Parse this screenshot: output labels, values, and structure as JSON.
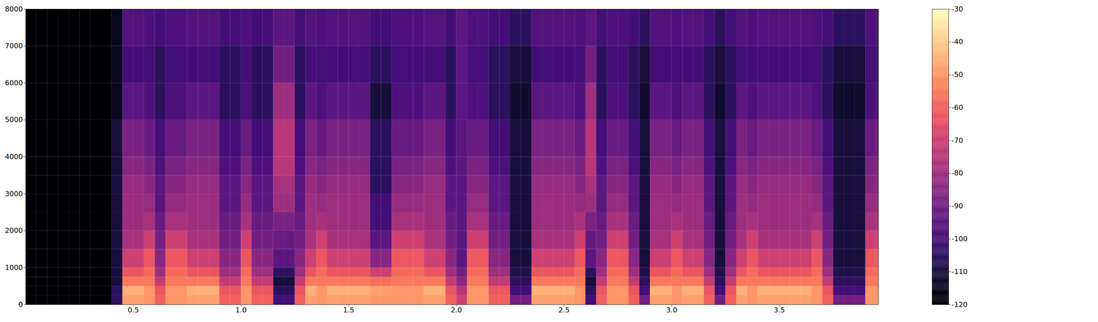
{
  "chart_data": {
    "type": "heatmap",
    "color": "magma",
    "x_edges": [
      0,
      0.05,
      0.1,
      0.15,
      0.2,
      0.25,
      0.3,
      0.35,
      0.4,
      0.45,
      0.5,
      0.55,
      0.6,
      0.65,
      0.7,
      0.75,
      0.8,
      0.85,
      0.9,
      0.95,
      1,
      1.05,
      1.1,
      1.15,
      1.2,
      1.25,
      1.3,
      1.35,
      1.4,
      1.45,
      1.5,
      1.55,
      1.6,
      1.65,
      1.7,
      1.75,
      1.8,
      1.85,
      1.9,
      1.95,
      2,
      2.05,
      2.1,
      2.15,
      2.2,
      2.25,
      2.3,
      2.35,
      2.4,
      2.45,
      2.5,
      2.55,
      2.6,
      2.65,
      2.7,
      2.75,
      2.8,
      2.85,
      2.9,
      2.95,
      3,
      3.05,
      3.1,
      3.15,
      3.2,
      3.25,
      3.3,
      3.35,
      3.4,
      3.45,
      3.5,
      3.55,
      3.6,
      3.65,
      3.7,
      3.75,
      3.8,
      3.85,
      3.9,
      3.95,
      4
    ],
    "y_edges": [
      0,
      250,
      500,
      750,
      1000,
      1500,
      2000,
      2500,
      3000,
      3500,
      4000,
      5000,
      6000,
      7000,
      8000
    ],
    "values": [
      [
        -120,
        -120,
        -120,
        -120,
        -120,
        -120,
        -120,
        -120,
        -120,
        -120,
        -120,
        -120,
        -120,
        -120
      ],
      [
        -120,
        -120,
        -120,
        -120,
        -120,
        -120,
        -120,
        -120,
        -120,
        -120,
        -120,
        -120,
        -120,
        -120
      ],
      [
        -120,
        -120,
        -120,
        -120,
        -120,
        -120,
        -120,
        -120,
        -120,
        -120,
        -120,
        -120,
        -120,
        -120
      ],
      [
        -120,
        -120,
        -120,
        -120,
        -120,
        -120,
        -120,
        -120,
        -120,
        -120,
        -120,
        -120,
        -120,
        -120
      ],
      [
        -120,
        -120,
        -120,
        -120,
        -120,
        -120,
        -120,
        -120,
        -120,
        -120,
        -120,
        -120,
        -120,
        -120
      ],
      [
        -120,
        -120,
        -120,
        -120,
        -120,
        -120,
        -120,
        -120,
        -120,
        -120,
        -120,
        -120,
        -120,
        -120
      ],
      [
        -120,
        -120,
        -120,
        -120,
        -120,
        -120,
        -120,
        -120,
        -120,
        -120,
        -120,
        -120,
        -120,
        -120
      ],
      [
        -120,
        -120,
        -120,
        -120,
        -120,
        -120,
        -120,
        -120,
        -120,
        -120,
        -120,
        -120,
        -120,
        -120
      ],
      [
        -105,
        -105,
        -110,
        -110,
        -110,
        -110,
        -110,
        -110,
        -110,
        -110,
        -110,
        -115,
        -115,
        -115
      ],
      [
        -48,
        -45,
        -55,
        -62,
        -70,
        -78,
        -80,
        -80,
        -82,
        -85,
        -88,
        -95,
        -100,
        -97
      ],
      [
        -48,
        -45,
        -55,
        -62,
        -70,
        -78,
        -80,
        -80,
        -82,
        -85,
        -88,
        -95,
        -100,
        -97
      ],
      [
        -50,
        -50,
        -55,
        -58,
        -62,
        -70,
        -78,
        -82,
        -85,
        -88,
        -92,
        -98,
        -100,
        -98
      ],
      [
        -60,
        -62,
        -72,
        -80,
        -85,
        -90,
        -92,
        -95,
        -95,
        -98,
        -100,
        -105,
        -105,
        -100
      ],
      [
        -50,
        -50,
        -55,
        -58,
        -62,
        -70,
        -78,
        -82,
        -85,
        -88,
        -92,
        -98,
        -100,
        -98
      ],
      [
        -50,
        -50,
        -55,
        -58,
        -62,
        -70,
        -78,
        -82,
        -85,
        -88,
        -92,
        -98,
        -100,
        -98
      ],
      [
        -48,
        -45,
        -55,
        -62,
        -70,
        -78,
        -80,
        -80,
        -82,
        -85,
        -88,
        -95,
        -100,
        -97
      ],
      [
        -48,
        -45,
        -55,
        -62,
        -70,
        -78,
        -80,
        -80,
        -82,
        -85,
        -88,
        -95,
        -100,
        -97
      ],
      [
        -48,
        -45,
        -55,
        -62,
        -70,
        -78,
        -80,
        -80,
        -82,
        -85,
        -88,
        -95,
        -100,
        -97
      ],
      [
        -60,
        -62,
        -72,
        -80,
        -85,
        -90,
        -92,
        -95,
        -95,
        -98,
        -100,
        -105,
        -105,
        -100
      ],
      [
        -60,
        -62,
        -72,
        -80,
        -85,
        -90,
        -92,
        -95,
        -95,
        -98,
        -100,
        -105,
        -105,
        -100
      ],
      [
        -50,
        -50,
        -55,
        -58,
        -62,
        -70,
        -78,
        -82,
        -85,
        -88,
        -92,
        -98,
        -100,
        -98
      ],
      [
        -60,
        -62,
        -72,
        -80,
        -85,
        -90,
        -92,
        -95,
        -95,
        -98,
        -100,
        -105,
        -105,
        -100
      ],
      [
        -60,
        -62,
        -72,
        -80,
        -85,
        -90,
        -92,
        -95,
        -95,
        -98,
        -100,
        -105,
        -105,
        -100
      ],
      [
        -100,
        -105,
        -110,
        -105,
        -95,
        -92,
        -88,
        -80,
        -78,
        -75,
        -75,
        -80,
        -90,
        -95
      ],
      [
        -100,
        -105,
        -110,
        -105,
        -95,
        -92,
        -88,
        -80,
        -78,
        -75,
        -75,
        -80,
        -90,
        -95
      ],
      [
        -60,
        -62,
        -72,
        -80,
        -85,
        -90,
        -92,
        -95,
        -95,
        -98,
        -100,
        -105,
        -105,
        -100
      ],
      [
        -48,
        -45,
        -55,
        -62,
        -70,
        -78,
        -80,
        -80,
        -82,
        -85,
        -88,
        -95,
        -100,
        -97
      ],
      [
        -50,
        -50,
        -55,
        -58,
        -62,
        -70,
        -78,
        -82,
        -85,
        -88,
        -92,
        -98,
        -100,
        -98
      ],
      [
        -48,
        -45,
        -55,
        -62,
        -70,
        -78,
        -80,
        -80,
        -82,
        -85,
        -88,
        -95,
        -100,
        -97
      ],
      [
        -48,
        -45,
        -55,
        -62,
        -70,
        -78,
        -80,
        -80,
        -82,
        -85,
        -88,
        -95,
        -100,
        -97
      ],
      [
        -48,
        -45,
        -55,
        -62,
        -70,
        -78,
        -80,
        -80,
        -82,
        -85,
        -88,
        -95,
        -100,
        -97
      ],
      [
        -48,
        -45,
        -55,
        -62,
        -70,
        -78,
        -80,
        -80,
        -82,
        -85,
        -88,
        -95,
        -100,
        -97
      ],
      [
        -50,
        -48,
        -58,
        -70,
        -85,
        -95,
        -100,
        -100,
        -105,
        -105,
        -105,
        -110,
        -105,
        -100
      ],
      [
        -50,
        -48,
        -58,
        -70,
        -85,
        -95,
        -100,
        -100,
        -105,
        -105,
        -105,
        -110,
        -105,
        -100
      ],
      [
        -50,
        -50,
        -55,
        -58,
        -62,
        -70,
        -78,
        -82,
        -85,
        -88,
        -92,
        -98,
        -100,
        -98
      ],
      [
        -50,
        -50,
        -55,
        -58,
        -62,
        -70,
        -78,
        -82,
        -85,
        -88,
        -92,
        -98,
        -100,
        -98
      ],
      [
        -50,
        -50,
        -55,
        -58,
        -62,
        -70,
        -78,
        -82,
        -85,
        -88,
        -92,
        -98,
        -100,
        -98
      ],
      [
        -48,
        -45,
        -55,
        -62,
        -70,
        -78,
        -80,
        -80,
        -82,
        -85,
        -88,
        -95,
        -100,
        -97
      ],
      [
        -48,
        -45,
        -55,
        -62,
        -70,
        -78,
        -80,
        -80,
        -82,
        -85,
        -88,
        -95,
        -100,
        -97
      ],
      [
        -60,
        -62,
        -72,
        -80,
        -85,
        -90,
        -92,
        -95,
        -95,
        -98,
        -100,
        -105,
        -105,
        -100
      ],
      [
        -70,
        -75,
        -85,
        -90,
        -95,
        -95,
        -95,
        -95,
        -95,
        -95,
        -95,
        -95,
        -95,
        -95
      ],
      [
        -50,
        -50,
        -55,
        -58,
        -62,
        -70,
        -78,
        -82,
        -85,
        -88,
        -92,
        -98,
        -100,
        -98
      ],
      [
        -50,
        -50,
        -55,
        -58,
        -62,
        -70,
        -78,
        -82,
        -85,
        -88,
        -92,
        -98,
        -100,
        -98
      ],
      [
        -60,
        -62,
        -72,
        -80,
        -85,
        -90,
        -92,
        -95,
        -95,
        -98,
        -100,
        -105,
        -105,
        -100
      ],
      [
        -60,
        -62,
        -72,
        -80,
        -85,
        -90,
        -92,
        -95,
        -95,
        -98,
        -100,
        -105,
        -105,
        -100
      ],
      [
        -90,
        -100,
        -105,
        -108,
        -110,
        -110,
        -110,
        -110,
        -110,
        -110,
        -110,
        -112,
        -110,
        -105
      ],
      [
        -90,
        -100,
        -105,
        -108,
        -110,
        -110,
        -110,
        -110,
        -110,
        -110,
        -110,
        -112,
        -110,
        -105
      ],
      [
        -48,
        -45,
        -55,
        -62,
        -70,
        -78,
        -80,
        -80,
        -82,
        -85,
        -88,
        -95,
        -100,
        -97
      ],
      [
        -48,
        -45,
        -55,
        -62,
        -70,
        -78,
        -80,
        -80,
        -82,
        -85,
        -88,
        -95,
        -100,
        -97
      ],
      [
        -48,
        -45,
        -55,
        -62,
        -70,
        -78,
        -80,
        -80,
        -82,
        -85,
        -88,
        -95,
        -100,
        -97
      ],
      [
        -48,
        -45,
        -55,
        -62,
        -70,
        -78,
        -80,
        -80,
        -82,
        -85,
        -88,
        -95,
        -100,
        -97
      ],
      [
        -50,
        -50,
        -55,
        -58,
        -62,
        -70,
        -78,
        -82,
        -85,
        -88,
        -92,
        -98,
        -100,
        -98
      ],
      [
        -100,
        -105,
        -110,
        -105,
        -95,
        -92,
        -88,
        -80,
        -78,
        -75,
        -75,
        -80,
        -90,
        -95
      ],
      [
        -60,
        -62,
        -72,
        -80,
        -85,
        -90,
        -92,
        -95,
        -95,
        -98,
        -100,
        -105,
        -105,
        -100
      ],
      [
        -50,
        -50,
        -55,
        -58,
        -62,
        -70,
        -78,
        -82,
        -85,
        -88,
        -92,
        -98,
        -100,
        -98
      ],
      [
        -50,
        -50,
        -55,
        -58,
        -62,
        -70,
        -78,
        -82,
        -85,
        -88,
        -92,
        -98,
        -100,
        -98
      ],
      [
        -60,
        -62,
        -72,
        -80,
        -85,
        -90,
        -92,
        -95,
        -95,
        -98,
        -100,
        -105,
        -105,
        -100
      ],
      [
        -90,
        -100,
        -105,
        -108,
        -110,
        -110,
        -110,
        -110,
        -110,
        -110,
        -110,
        -112,
        -110,
        -105
      ],
      [
        -48,
        -45,
        -55,
        -62,
        -70,
        -78,
        -80,
        -80,
        -82,
        -85,
        -88,
        -95,
        -100,
        -97
      ],
      [
        -48,
        -45,
        -55,
        -62,
        -70,
        -78,
        -80,
        -80,
        -82,
        -85,
        -88,
        -95,
        -100,
        -97
      ],
      [
        -50,
        -50,
        -55,
        -58,
        -62,
        -70,
        -78,
        -82,
        -85,
        -88,
        -92,
        -98,
        -100,
        -98
      ],
      [
        -48,
        -45,
        -55,
        -62,
        -70,
        -78,
        -80,
        -80,
        -82,
        -85,
        -88,
        -95,
        -100,
        -97
      ],
      [
        -48,
        -45,
        -55,
        -62,
        -70,
        -78,
        -80,
        -80,
        -82,
        -85,
        -88,
        -95,
        -100,
        -97
      ],
      [
        -60,
        -62,
        -72,
        -80,
        -85,
        -90,
        -92,
        -95,
        -95,
        -98,
        -100,
        -105,
        -105,
        -100
      ],
      [
        -90,
        -100,
        -105,
        -108,
        -110,
        -110,
        -110,
        -110,
        -110,
        -110,
        -110,
        -112,
        -110,
        -105
      ],
      [
        -60,
        -62,
        -72,
        -80,
        -85,
        -90,
        -92,
        -95,
        -95,
        -98,
        -100,
        -105,
        -105,
        -100
      ],
      [
        -48,
        -45,
        -55,
        -62,
        -70,
        -78,
        -80,
        -80,
        -82,
        -85,
        -88,
        -95,
        -100,
        -97
      ],
      [
        -50,
        -50,
        -55,
        -58,
        -62,
        -70,
        -78,
        -82,
        -85,
        -88,
        -92,
        -98,
        -100,
        -98
      ],
      [
        -48,
        -45,
        -55,
        -62,
        -70,
        -78,
        -80,
        -80,
        -82,
        -85,
        -88,
        -95,
        -100,
        -97
      ],
      [
        -48,
        -45,
        -55,
        -62,
        -70,
        -78,
        -80,
        -80,
        -82,
        -85,
        -88,
        -95,
        -100,
        -97
      ],
      [
        -48,
        -45,
        -55,
        -62,
        -70,
        -78,
        -80,
        -80,
        -82,
        -85,
        -88,
        -95,
        -100,
        -97
      ],
      [
        -48,
        -45,
        -55,
        -62,
        -70,
        -78,
        -80,
        -80,
        -82,
        -85,
        -88,
        -95,
        -100,
        -97
      ],
      [
        -48,
        -45,
        -55,
        -62,
        -70,
        -78,
        -80,
        -80,
        -82,
        -85,
        -88,
        -95,
        -100,
        -97
      ],
      [
        -50,
        -50,
        -55,
        -58,
        -62,
        -70,
        -78,
        -82,
        -85,
        -88,
        -92,
        -98,
        -100,
        -98
      ],
      [
        -60,
        -62,
        -72,
        -80,
        -85,
        -90,
        -92,
        -95,
        -95,
        -98,
        -100,
        -105,
        -105,
        -100
      ],
      [
        -90,
        -100,
        -105,
        -108,
        -110,
        -110,
        -110,
        -110,
        -110,
        -110,
        -110,
        -112,
        -110,
        -105
      ],
      [
        -90,
        -100,
        -105,
        -108,
        -110,
        -110,
        -110,
        -110,
        -110,
        -110,
        -110,
        -112,
        -110,
        -105
      ],
      [
        -90,
        -100,
        -105,
        -108,
        -110,
        -110,
        -110,
        -110,
        -110,
        -110,
        -110,
        -112,
        -110,
        -105
      ],
      [
        -50,
        -50,
        -55,
        -58,
        -62,
        -70,
        -78,
        -82,
        -85,
        -88,
        -92,
        -98,
        -100,
        -98
      ],
      [
        -50,
        -50,
        -55,
        -58,
        -62,
        -70,
        -78,
        -82,
        -85,
        -88,
        -92,
        -98,
        -100,
        -98
      ]
    ],
    "xlim": [
      0,
      3.96
    ],
    "xticks": [
      0.5,
      {
        "value": 1,
        "label": "1.0"
      },
      1.5,
      {
        "value": 2,
        "label": "2.0"
      },
      2.5,
      {
        "value": 3,
        "label": "3.0"
      },
      3.5
    ],
    "ylim": [
      0,
      8000
    ],
    "yticks": [
      0,
      1000,
      2000,
      3000,
      4000,
      5000,
      6000,
      7000,
      8000
    ],
    "colorbar": {
      "range": [
        -120,
        -30
      ],
      "ticks": [
        -120,
        -110,
        -100,
        -90,
        -80,
        -70,
        -60,
        -50,
        -40,
        -30
      ]
    }
  }
}
